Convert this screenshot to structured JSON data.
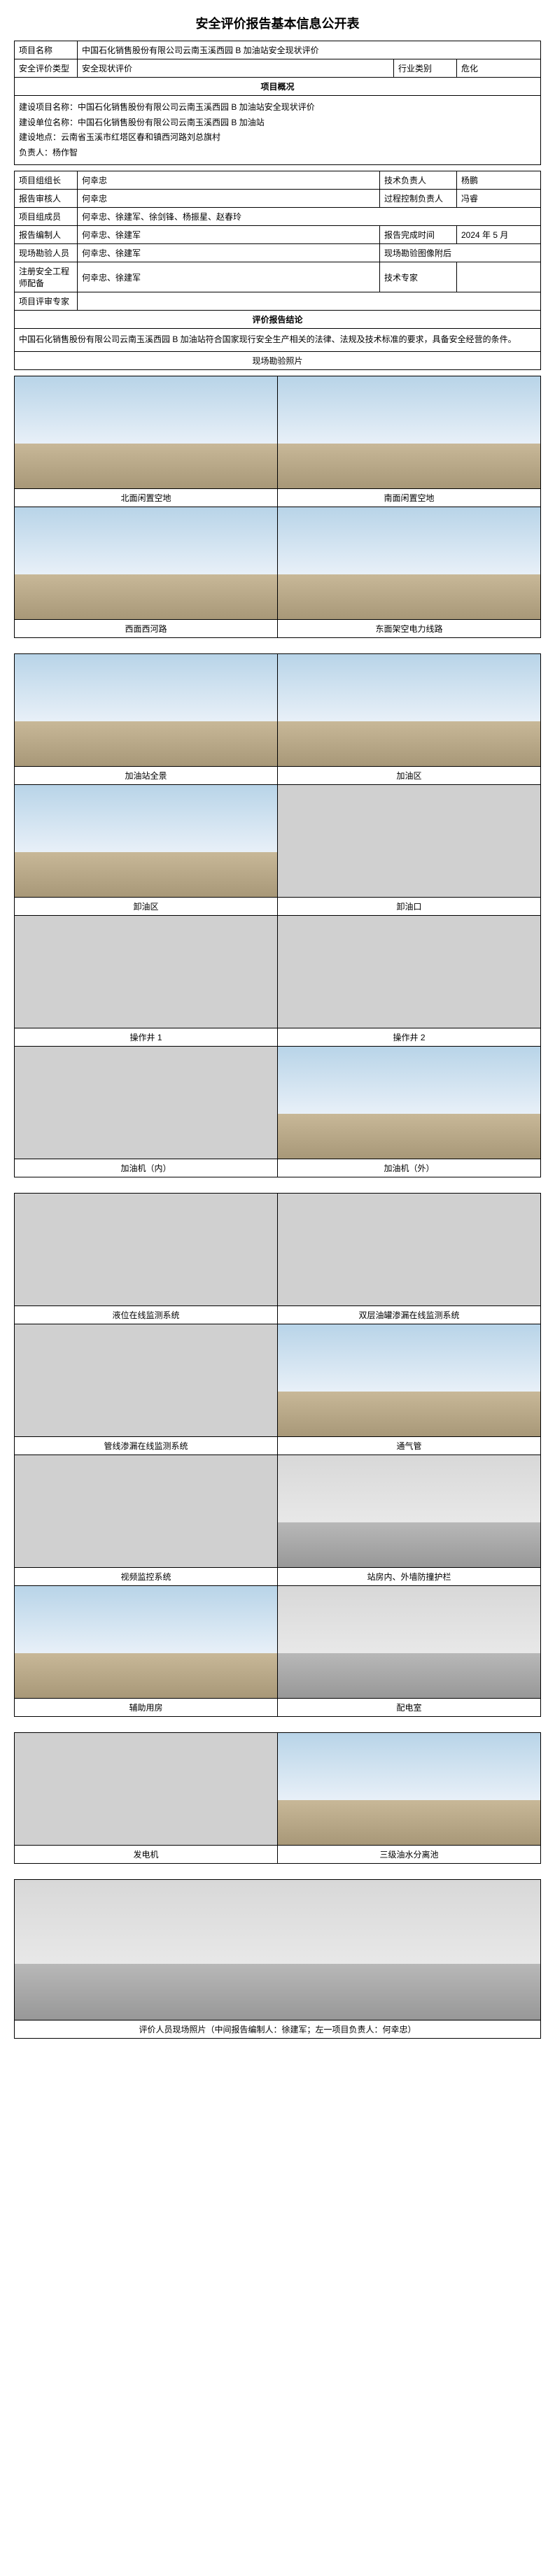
{
  "title": "安全评价报告基本信息公开表",
  "header": {
    "project_name_label": "项目名称",
    "project_name": "中国石化销售股份有限公司云南玉溪西园 B 加油站安全现状评价",
    "eval_type_label": "安全评价类型",
    "eval_type": "安全现状评价",
    "industry_label": "行业类别",
    "industry": "危化"
  },
  "overview": {
    "section_title": "项目概况",
    "line1_label": "建设项目名称：",
    "line1": "中国石化销售股份有限公司云南玉溪西园 B 加油站安全现状评价",
    "line2_label": "建设单位名称：",
    "line2": "中国石化销售股份有限公司云南玉溪西园 B 加油站",
    "line3_label": "建设地点：",
    "line3": "云南省玉溪市红塔区春和镇西河路刘总旗村",
    "line4_label": "负责人：",
    "line4": "杨作智"
  },
  "team": {
    "leader_label": "项目组组长",
    "leader": "何幸忠",
    "tech_lead_label": "技术负责人",
    "tech_lead": "杨鹏",
    "reviewer_label": "报告审核人",
    "reviewer": "何幸忠",
    "proc_ctrl_label": "过程控制负责人",
    "proc_ctrl": "冯睿",
    "members_label": "项目组成员",
    "members": "何幸忠、徐建军、徐剑锋、杨振星、赵春玲",
    "compiler_label": "报告编制人",
    "compiler": "何幸忠、徐建军",
    "compile_date_label": "报告完成时间",
    "compile_date": "2024 年 5 月",
    "site_personnel_label": "现场勘验人员",
    "site_personnel": "何幸忠、徐建军",
    "site_img_label": "现场勘验图像附后",
    "safety_eng_label": "注册安全工程师配备",
    "safety_eng": "何幸忠、徐建军",
    "tech_expert_label": "技术专家",
    "tech_expert": "",
    "review_expert_label": "项目评审专家",
    "review_expert": ""
  },
  "conclusion": {
    "section_title": "评价报告结论",
    "text": "中国石化销售股份有限公司云南玉溪西园 B 加油站符合国家现行安全生产相关的法律、法规及技术标准的要求，具备安全经营的条件。"
  },
  "photo_section_title": "现场勘验照片",
  "photos": [
    {
      "caption": "北面闲置空地",
      "type": "outdoor"
    },
    {
      "caption": "南面闲置空地",
      "type": "outdoor"
    },
    {
      "caption": "西面西河路",
      "type": "outdoor"
    },
    {
      "caption": "东面架空电力线路",
      "type": "outdoor"
    },
    {
      "caption": "加油站全景",
      "type": "outdoor"
    },
    {
      "caption": "加油区",
      "type": "outdoor"
    },
    {
      "caption": "卸油区",
      "type": "outdoor"
    },
    {
      "caption": "卸油口",
      "type": "equipment"
    },
    {
      "caption": "操作井 1",
      "type": "equipment"
    },
    {
      "caption": "操作井 2",
      "type": "equipment"
    },
    {
      "caption": "加油机（内）",
      "type": "equipment"
    },
    {
      "caption": "加油机（外）",
      "type": "outdoor"
    },
    {
      "caption": "液位在线监测系统",
      "type": "equipment"
    },
    {
      "caption": "双层油罐渗漏在线监测系统",
      "type": "equipment"
    },
    {
      "caption": "管线渗漏在线监测系统",
      "type": "equipment"
    },
    {
      "caption": "通气管",
      "type": "outdoor"
    },
    {
      "caption": "视频监控系统",
      "type": "equipment"
    },
    {
      "caption": "站房内、外墙防撞护栏",
      "type": "indoor"
    },
    {
      "caption": "辅助用房",
      "type": "outdoor"
    },
    {
      "caption": "配电室",
      "type": "indoor"
    },
    {
      "caption": "发电机",
      "type": "equipment"
    },
    {
      "caption": "三级油水分离池",
      "type": "outdoor"
    }
  ],
  "final_photo_caption": "评价人员现场照片（中间报告编制人：徐建军；左一项目负责人：何幸忠）"
}
